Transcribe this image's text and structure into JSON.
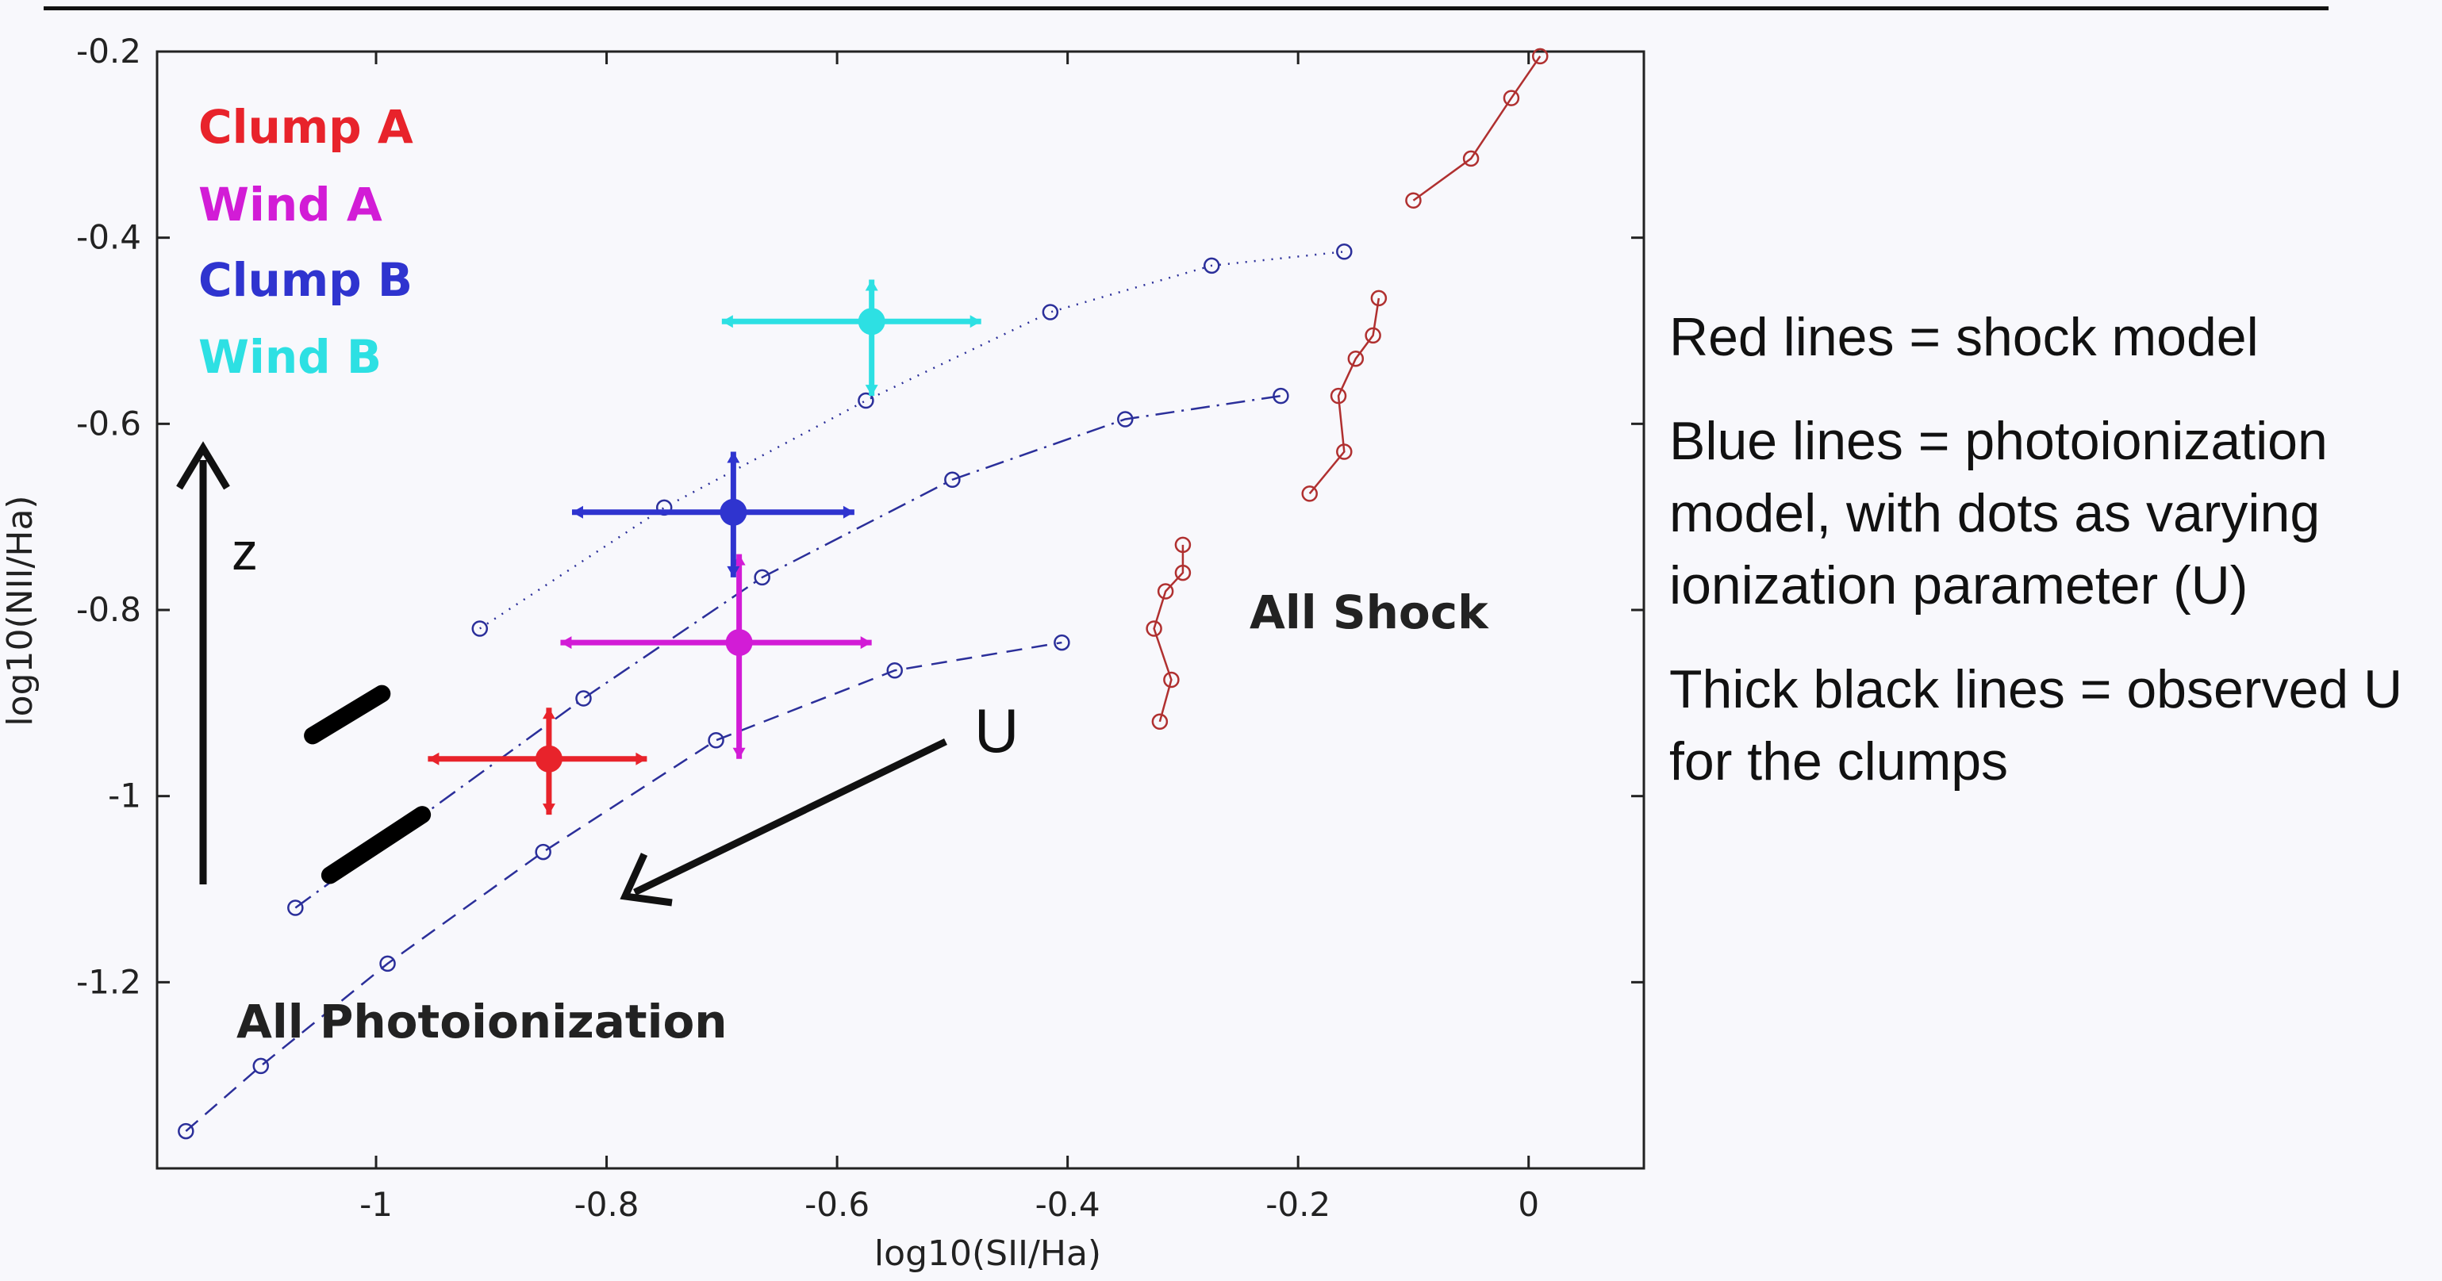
{
  "chart_data": {
    "type": "scatter",
    "xlabel": "log10(SII/Ha)",
    "ylabel": "log10(NII/Ha)",
    "xlim": [
      -1.19,
      0.1
    ],
    "ylim": [
      -1.4,
      -0.2
    ],
    "xticks": [
      -1,
      -0.8,
      -0.6,
      -0.4,
      -0.2,
      0
    ],
    "xtick_labels": [
      "-1",
      "-0.8",
      "-0.6",
      "-0.4",
      "-0.2",
      "0"
    ],
    "yticks": [
      -0.2,
      -0.4,
      -0.6,
      -0.8,
      -1,
      -1.2
    ],
    "ytick_labels": [
      "-0.2",
      "-0.4",
      "-0.6",
      "-0.8",
      "-1",
      "-1.2"
    ],
    "grid": false,
    "legend_position": "top-left",
    "photoionization_lines": [
      {
        "style": "dotted",
        "color": "#2b2f9a",
        "points": [
          [
            -0.91,
            -0.82
          ],
          [
            -0.75,
            -0.69
          ],
          [
            -0.575,
            -0.575
          ],
          [
            -0.415,
            -0.48
          ],
          [
            -0.275,
            -0.43
          ],
          [
            -0.16,
            -0.415
          ]
        ]
      },
      {
        "style": "dashdot",
        "color": "#2b2f9a",
        "points": [
          [
            -1.07,
            -1.12
          ],
          [
            -0.82,
            -0.895
          ],
          [
            -0.665,
            -0.765
          ],
          [
            -0.5,
            -0.66
          ],
          [
            -0.35,
            -0.595
          ],
          [
            -0.215,
            -0.57
          ]
        ]
      },
      {
        "style": "dashed",
        "color": "#2b2f9a",
        "points": [
          [
            -1.165,
            -1.36
          ],
          [
            -1.1,
            -1.29
          ],
          [
            -0.99,
            -1.18
          ],
          [
            -0.855,
            -1.06
          ],
          [
            -0.705,
            -0.94
          ],
          [
            -0.55,
            -0.865
          ],
          [
            -0.405,
            -0.835
          ]
        ]
      }
    ],
    "shock_lines": [
      {
        "color": "#b03030",
        "points": [
          [
            -0.1,
            -0.36
          ],
          [
            -0.05,
            -0.315
          ],
          [
            -0.015,
            -0.25
          ],
          [
            0.01,
            -0.205
          ]
        ]
      },
      {
        "color": "#b03030",
        "points": [
          [
            -0.19,
            -0.675
          ],
          [
            -0.16,
            -0.63
          ],
          [
            -0.165,
            -0.57
          ],
          [
            -0.15,
            -0.53
          ],
          [
            -0.135,
            -0.505
          ],
          [
            -0.13,
            -0.465
          ]
        ]
      },
      {
        "color": "#b03030",
        "points": [
          [
            -0.32,
            -0.92
          ],
          [
            -0.31,
            -0.875
          ],
          [
            -0.325,
            -0.82
          ],
          [
            -0.315,
            -0.78
          ],
          [
            -0.3,
            -0.76
          ],
          [
            -0.3,
            -0.73
          ]
        ]
      }
    ],
    "observed_U_segments": [
      {
        "color": "#000000",
        "points": [
          [
            -1.055,
            -0.935
          ],
          [
            -0.995,
            -0.89
          ]
        ]
      },
      {
        "color": "#000000",
        "points": [
          [
            -1.04,
            -1.085
          ],
          [
            -0.96,
            -1.02
          ]
        ]
      }
    ],
    "series": [
      {
        "name": "Clump A",
        "color": "#e8232b",
        "x": -0.85,
        "y": -0.96,
        "xerr": [
          0.105,
          0.085
        ],
        "yerr": [
          0.06,
          0.055
        ]
      },
      {
        "name": "Wind A",
        "color": "#d21cd6",
        "x": -0.685,
        "y": -0.835,
        "xerr": [
          0.155,
          0.115
        ],
        "yerr": [
          0.125,
          0.095
        ]
      },
      {
        "name": "Clump B",
        "color": "#2f34cf",
        "x": -0.69,
        "y": -0.695,
        "xerr": [
          0.14,
          0.105
        ],
        "yerr": [
          0.07,
          0.065
        ]
      },
      {
        "name": "Wind B",
        "color": "#2de0e3",
        "x": -0.57,
        "y": -0.49,
        "xerr": [
          0.13,
          0.095
        ],
        "yerr": [
          0.08,
          0.045
        ]
      }
    ],
    "annotations": {
      "all_shock": "All Shock",
      "all_photoionization": "All Photoionization",
      "z_label": "z",
      "u_label": "U"
    }
  },
  "notes": [
    "Red lines = shock model",
    "Blue lines = photoionization model, with dots as varying ionization parameter (U)",
    "Thick black lines = observed U for the clumps"
  ]
}
